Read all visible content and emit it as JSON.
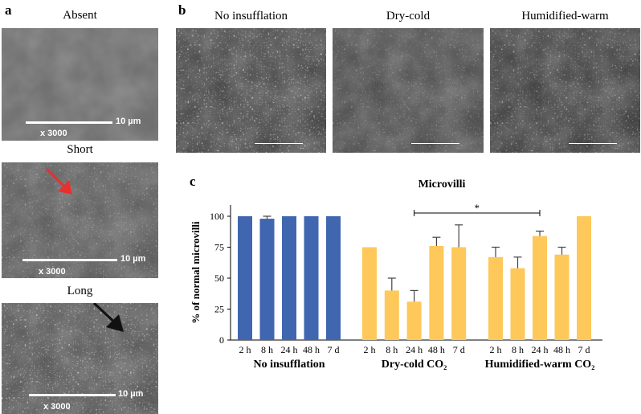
{
  "panel_a": {
    "label": "a",
    "images": [
      {
        "caption": "Absent",
        "scale": "10 µm",
        "mag": "x 3000"
      },
      {
        "caption": "Short",
        "scale": "10 µm",
        "mag": "x 3000"
      },
      {
        "caption": "Long",
        "scale": "10 µm",
        "mag": "x 3000"
      }
    ]
  },
  "panel_b": {
    "label": "b",
    "images": [
      {
        "caption": "No insufflation"
      },
      {
        "caption": "Dry-cold"
      },
      {
        "caption": "Humidified-warm"
      }
    ]
  },
  "colors": {
    "blue": "#4066b0",
    "yellow": "#fec85a",
    "red_arrow": "#e8302c"
  },
  "chart_data": {
    "panel_label": "c",
    "type": "bar",
    "title": "Microvilli",
    "ylabel": "% of normal microvilli",
    "ylim": [
      0,
      100
    ],
    "yticks": [
      "0",
      "25",
      "50",
      "75",
      "100"
    ],
    "groups": [
      {
        "name": "No insufflation",
        "color": "blue",
        "categories": [
          "2 h",
          "8 h",
          "24 h",
          "48 h",
          "7 d"
        ],
        "values": [
          100,
          98,
          100,
          100,
          100
        ],
        "err_top": [
          null,
          100,
          null,
          null,
          null
        ]
      },
      {
        "name": "Dry-cold CO₂",
        "color": "yellow",
        "categories": [
          "2 h",
          "8 h",
          "24 h",
          "48 h",
          "7 d"
        ],
        "values": [
          75,
          40,
          31,
          76,
          75
        ],
        "err_top": [
          null,
          50,
          40,
          83,
          93
        ]
      },
      {
        "name": "Humidified-warm CO₂",
        "color": "yellow",
        "categories": [
          "2 h",
          "8 h",
          "24 h",
          "48 h",
          "7 d"
        ],
        "values": [
          67,
          58,
          84,
          69,
          100
        ],
        "err_top": [
          75,
          67,
          88,
          75,
          null
        ]
      }
    ],
    "annotation": {
      "text": "*",
      "from": "Dry-cold CO₂ 24 h",
      "to": "Humidified-warm CO₂ 24 h"
    }
  }
}
